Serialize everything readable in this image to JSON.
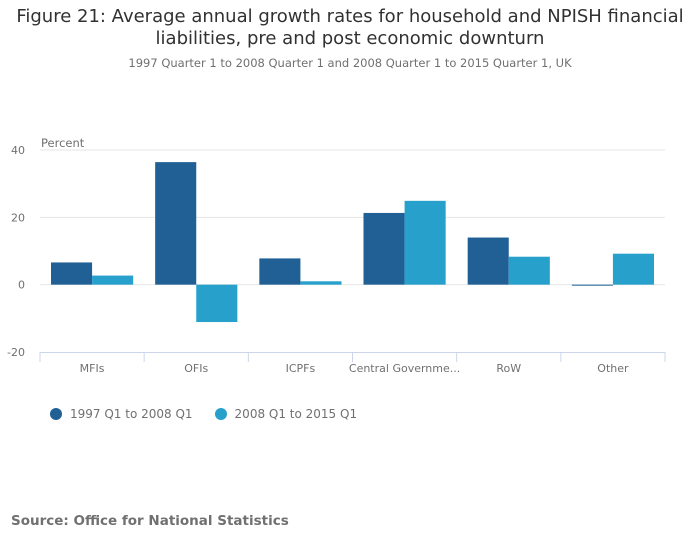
{
  "chart_data": {
    "type": "bar",
    "title": "Figure 21: Average annual growth rates for household and NPISH financial liabilities, pre and post economic downturn",
    "title_lines": [
      "Figure 21: Average annual growth rates for household and NPISH financial",
      "liabilities, pre and post economic downturn"
    ],
    "subtitle": "1997 Quarter 1 to 2008 Quarter 1 and 2008 Quarter 1 to 2015 Quarter 1, UK",
    "ylabel": "Percent",
    "xlabel": "",
    "ylim": [
      -20,
      40
    ],
    "yticks": [
      -20,
      0,
      20,
      40
    ],
    "grid": true,
    "legend_position": "bottom-left",
    "categories": [
      "MFIs",
      "OFIs",
      "ICPFs",
      "Central Governme...",
      "RoW",
      "Other"
    ],
    "series": [
      {
        "name": "1997 Q1 to 2008 Q1",
        "color": "#206095",
        "values": [
          6.6,
          36.4,
          7.8,
          21.3,
          14.0,
          -0.3
        ]
      },
      {
        "name": "2008 Q1 to 2015 Q1",
        "color": "#27A0CC",
        "values": [
          2.7,
          -11.1,
          1.0,
          24.9,
          8.3,
          9.2
        ]
      }
    ]
  },
  "source": "Source: Office for National Statistics",
  "colors": {
    "grid": "#e6e6e6",
    "axis": "#ccd6eb",
    "text": "#707071"
  }
}
